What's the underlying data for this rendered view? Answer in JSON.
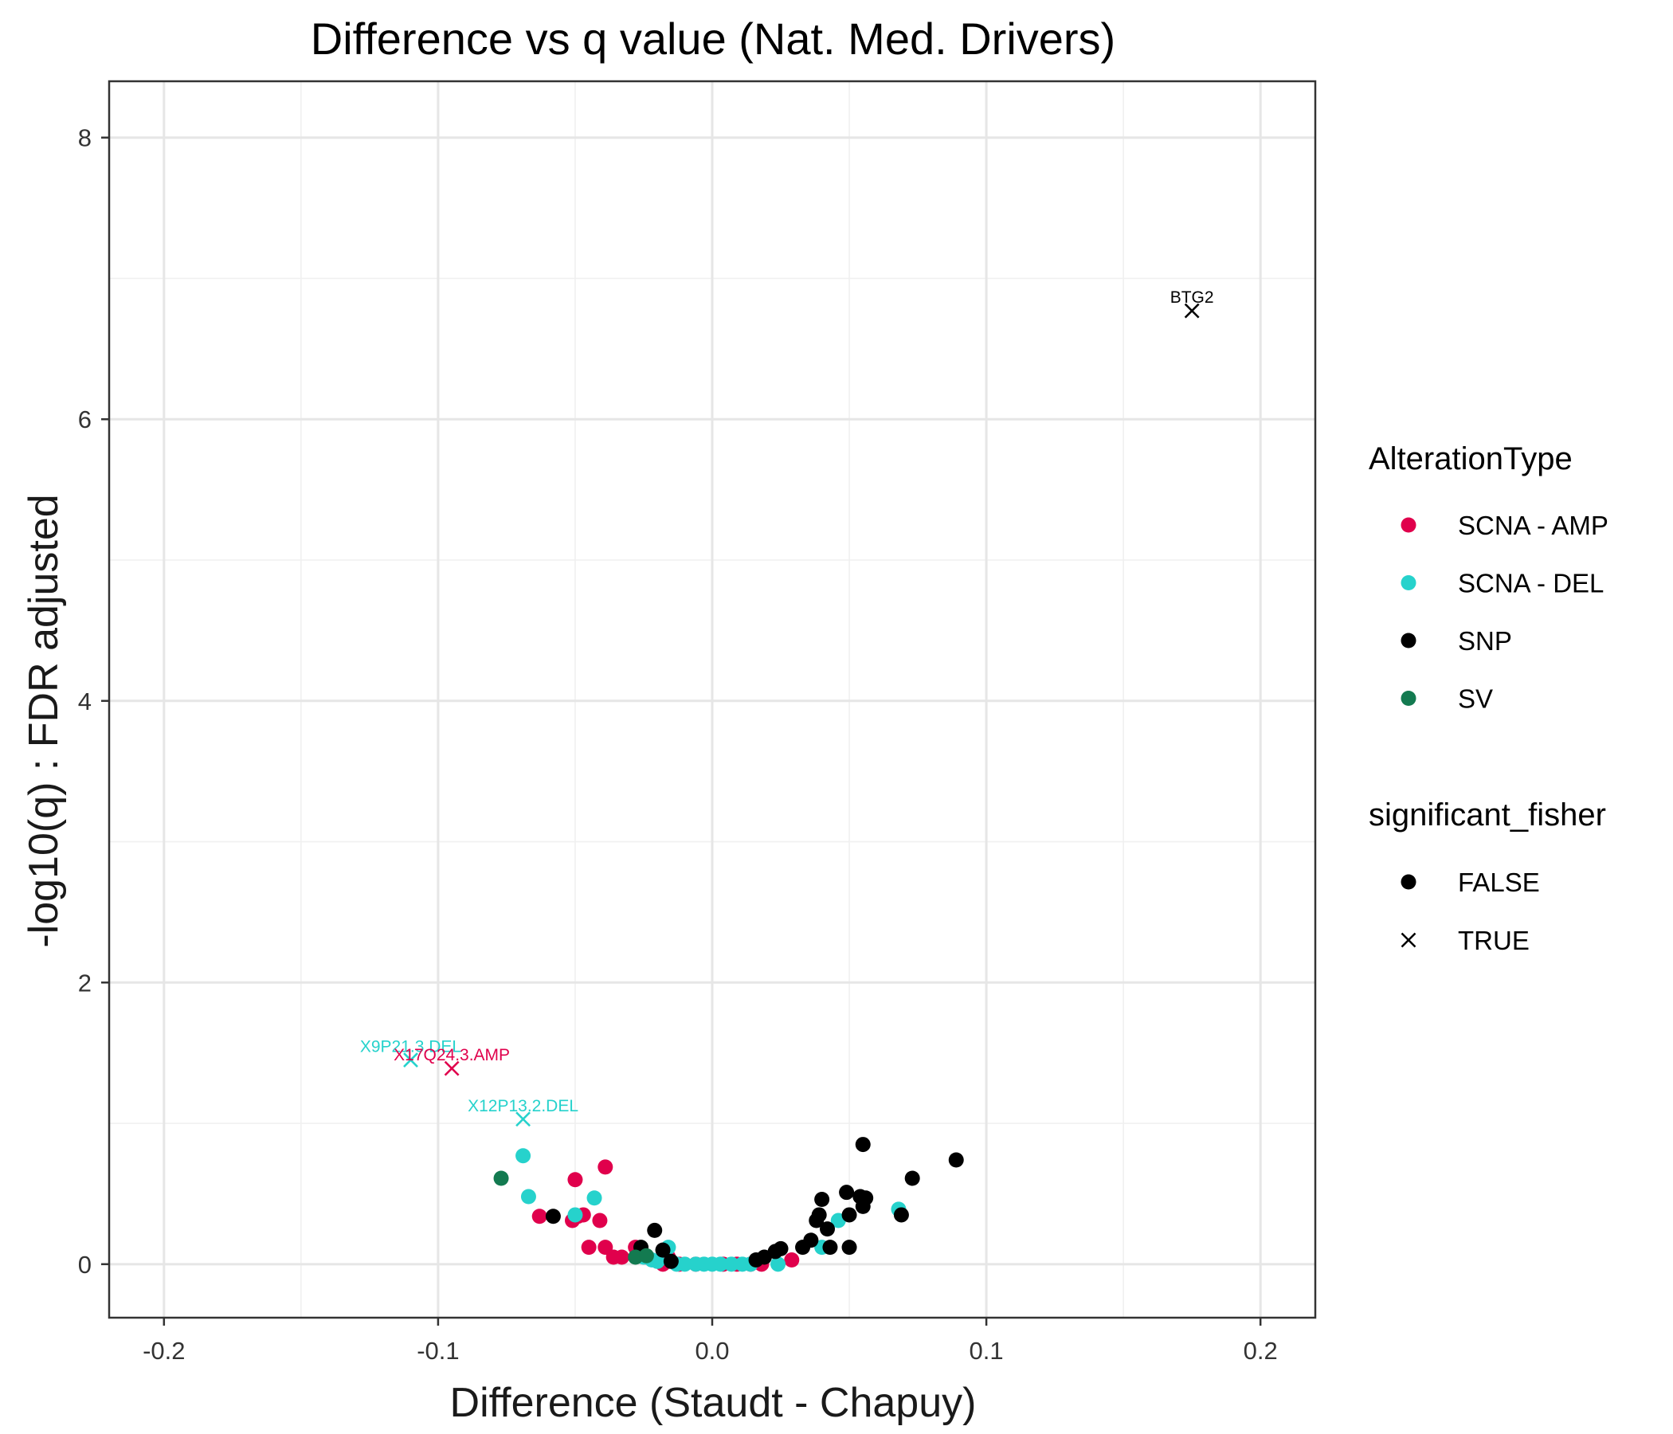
{
  "chart_data": {
    "type": "scatter",
    "title": "Difference vs q value (Nat. Med. Drivers)",
    "xlabel": "Difference (Staudt - Chapuy)",
    "ylabel": "-log10(q) : FDR adjusted",
    "xlim": [
      -0.22,
      0.22
    ],
    "ylim": [
      -0.38,
      8.4
    ],
    "xticks": [
      -0.2,
      -0.1,
      0.0,
      0.1,
      0.2
    ],
    "xtick_labels": [
      "-0.2",
      "-0.1",
      "0.0",
      "0.1",
      "0.2"
    ],
    "yticks": [
      0,
      2,
      4,
      6,
      8
    ],
    "ytick_labels": [
      "0",
      "2",
      "4",
      "6",
      "8"
    ],
    "grid": true,
    "legend_position": "right",
    "colors": {
      "SCNA - AMP": "#e0004c",
      "SCNA - DEL": "#26d2cc",
      "SNP": "#000000",
      "SV": "#137a50"
    },
    "legend": {
      "color_title": "AlterationType",
      "color_entries": [
        "SCNA - AMP",
        "SCNA - DEL",
        "SNP",
        "SV"
      ],
      "shape_title": "significant_fisher",
      "shape_entries": [
        {
          "label": "FALSE",
          "shape": "circle"
        },
        {
          "label": "TRUE",
          "shape": "cross"
        }
      ]
    },
    "labeled_points": [
      {
        "label": "BTG2",
        "x": 0.175,
        "y": 6.77,
        "type": "SNP"
      },
      {
        "label": "X9P21.3.DEL",
        "x": -0.11,
        "y": 1.45,
        "type": "SCNA - DEL"
      },
      {
        "label": "X17Q24.3.AMP",
        "x": -0.095,
        "y": 1.39,
        "type": "SCNA - AMP"
      },
      {
        "label": "X12P13.2.DEL",
        "x": -0.069,
        "y": 1.03,
        "type": "SCNA - DEL"
      }
    ],
    "series": [
      {
        "name": "SCNA - AMP",
        "points": [
          {
            "x": -0.039,
            "y": 0.69,
            "sig": false
          },
          {
            "x": -0.05,
            "y": 0.6,
            "sig": false
          },
          {
            "x": -0.049,
            "y": 0.34,
            "sig": false
          },
          {
            "x": -0.047,
            "y": 0.35,
            "sig": false
          },
          {
            "x": -0.051,
            "y": 0.31,
            "sig": false
          },
          {
            "x": -0.063,
            "y": 0.34,
            "sig": false
          },
          {
            "x": -0.041,
            "y": 0.31,
            "sig": false
          },
          {
            "x": -0.045,
            "y": 0.12,
            "sig": false
          },
          {
            "x": -0.039,
            "y": 0.12,
            "sig": false
          },
          {
            "x": -0.036,
            "y": 0.05,
            "sig": false
          },
          {
            "x": -0.033,
            "y": 0.05,
            "sig": false
          },
          {
            "x": -0.028,
            "y": 0.12,
            "sig": false
          },
          {
            "x": -0.024,
            "y": 0.05,
            "sig": false
          },
          {
            "x": -0.018,
            "y": 0.0,
            "sig": false
          },
          {
            "x": -0.016,
            "y": 0.05,
            "sig": false
          },
          {
            "x": -0.012,
            "y": 0.0,
            "sig": false
          },
          {
            "x": -0.006,
            "y": 0.0,
            "sig": false
          },
          {
            "x": 0.004,
            "y": 0.0,
            "sig": false
          },
          {
            "x": 0.009,
            "y": 0.0,
            "sig": false
          },
          {
            "x": 0.014,
            "y": 0.0,
            "sig": false
          },
          {
            "x": 0.018,
            "y": 0.0,
            "sig": false
          },
          {
            "x": 0.029,
            "y": 0.03,
            "sig": false
          },
          {
            "x": -0.095,
            "y": 1.39,
            "sig": true
          }
        ]
      },
      {
        "name": "SCNA - DEL",
        "points": [
          {
            "x": -0.069,
            "y": 0.77,
            "sig": false
          },
          {
            "x": -0.067,
            "y": 0.48,
            "sig": false
          },
          {
            "x": -0.043,
            "y": 0.47,
            "sig": false
          },
          {
            "x": -0.05,
            "y": 0.35,
            "sig": false
          },
          {
            "x": -0.025,
            "y": 0.05,
            "sig": false
          },
          {
            "x": -0.022,
            "y": 0.03,
            "sig": false
          },
          {
            "x": -0.02,
            "y": 0.02,
            "sig": false
          },
          {
            "x": -0.016,
            "y": 0.12,
            "sig": false
          },
          {
            "x": -0.013,
            "y": 0.0,
            "sig": false
          },
          {
            "x": -0.01,
            "y": 0.0,
            "sig": false
          },
          {
            "x": -0.006,
            "y": 0.0,
            "sig": false
          },
          {
            "x": -0.003,
            "y": 0.0,
            "sig": false
          },
          {
            "x": 0.0,
            "y": 0.0,
            "sig": false
          },
          {
            "x": 0.003,
            "y": 0.0,
            "sig": false
          },
          {
            "x": 0.007,
            "y": 0.0,
            "sig": false
          },
          {
            "x": 0.011,
            "y": 0.0,
            "sig": false
          },
          {
            "x": 0.014,
            "y": 0.0,
            "sig": false
          },
          {
            "x": 0.024,
            "y": 0.0,
            "sig": false
          },
          {
            "x": 0.04,
            "y": 0.12,
            "sig": false
          },
          {
            "x": 0.046,
            "y": 0.31,
            "sig": false
          },
          {
            "x": 0.068,
            "y": 0.39,
            "sig": false
          },
          {
            "x": -0.11,
            "y": 1.45,
            "sig": true
          },
          {
            "x": -0.069,
            "y": 1.03,
            "sig": true
          }
        ]
      },
      {
        "name": "SNP",
        "points": [
          {
            "x": -0.058,
            "y": 0.34,
            "sig": false
          },
          {
            "x": -0.021,
            "y": 0.24,
            "sig": false
          },
          {
            "x": -0.026,
            "y": 0.12,
            "sig": false
          },
          {
            "x": -0.018,
            "y": 0.1,
            "sig": false
          },
          {
            "x": -0.015,
            "y": 0.02,
            "sig": false
          },
          {
            "x": 0.016,
            "y": 0.03,
            "sig": false
          },
          {
            "x": 0.019,
            "y": 0.05,
            "sig": false
          },
          {
            "x": 0.023,
            "y": 0.09,
            "sig": false
          },
          {
            "x": 0.025,
            "y": 0.11,
            "sig": false
          },
          {
            "x": 0.033,
            "y": 0.12,
            "sig": false
          },
          {
            "x": 0.036,
            "y": 0.17,
            "sig": false
          },
          {
            "x": 0.038,
            "y": 0.31,
            "sig": false
          },
          {
            "x": 0.039,
            "y": 0.35,
            "sig": false
          },
          {
            "x": 0.04,
            "y": 0.46,
            "sig": false
          },
          {
            "x": 0.042,
            "y": 0.25,
            "sig": false
          },
          {
            "x": 0.043,
            "y": 0.12,
            "sig": false
          },
          {
            "x": 0.049,
            "y": 0.51,
            "sig": false
          },
          {
            "x": 0.05,
            "y": 0.35,
            "sig": false
          },
          {
            "x": 0.05,
            "y": 0.12,
            "sig": false
          },
          {
            "x": 0.054,
            "y": 0.48,
            "sig": false
          },
          {
            "x": 0.055,
            "y": 0.41,
            "sig": false
          },
          {
            "x": 0.055,
            "y": 0.85,
            "sig": false
          },
          {
            "x": 0.056,
            "y": 0.47,
            "sig": false
          },
          {
            "x": 0.069,
            "y": 0.35,
            "sig": false
          },
          {
            "x": 0.073,
            "y": 0.61,
            "sig": false
          },
          {
            "x": 0.089,
            "y": 0.74,
            "sig": false
          },
          {
            "x": 0.175,
            "y": 6.77,
            "sig": true
          }
        ]
      },
      {
        "name": "SV",
        "points": [
          {
            "x": -0.077,
            "y": 0.61,
            "sig": false
          },
          {
            "x": -0.028,
            "y": 0.05,
            "sig": false
          },
          {
            "x": -0.024,
            "y": 0.06,
            "sig": false
          }
        ]
      }
    ]
  }
}
